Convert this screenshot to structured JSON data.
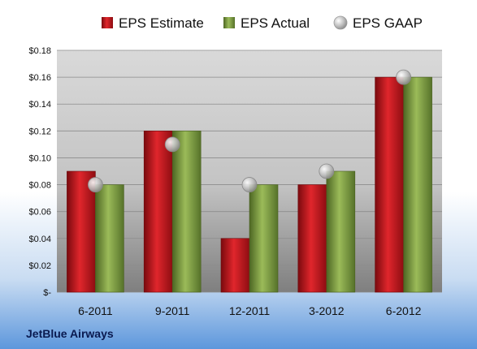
{
  "chart_data": {
    "type": "bar",
    "categories": [
      "6-2011",
      "9-2011",
      "12-2011",
      "3-2012",
      "6-2012"
    ],
    "series": [
      {
        "name": "EPS Estimate",
        "kind": "bar",
        "color": "#c8141b",
        "values": [
          0.09,
          0.12,
          0.04,
          0.08,
          0.16
        ]
      },
      {
        "name": "EPS Actual",
        "kind": "bar",
        "color": "#7a9a3a",
        "values": [
          0.08,
          0.12,
          0.08,
          0.09,
          0.16
        ]
      },
      {
        "name": "EPS GAAP",
        "kind": "marker",
        "color": "#b8b8b8",
        "values": [
          0.08,
          0.11,
          0.08,
          0.09,
          0.16
        ]
      }
    ],
    "ylim": [
      0,
      0.18
    ],
    "yticks": [
      {
        "value": 0,
        "label": "$-"
      },
      {
        "value": 0.02,
        "label": "$0.02"
      },
      {
        "value": 0.04,
        "label": "$0.04"
      },
      {
        "value": 0.06,
        "label": "$0.06"
      },
      {
        "value": 0.08,
        "label": "$0.08"
      },
      {
        "value": 0.1,
        "label": "$0.10"
      },
      {
        "value": 0.12,
        "label": "$0.12"
      },
      {
        "value": 0.14,
        "label": "$0.14"
      },
      {
        "value": 0.16,
        "label": "$0.16"
      },
      {
        "value": 0.18,
        "label": "$0.18"
      }
    ],
    "grid": true,
    "legend_position": "top"
  },
  "footer": {
    "company": "JetBlue Airways"
  }
}
